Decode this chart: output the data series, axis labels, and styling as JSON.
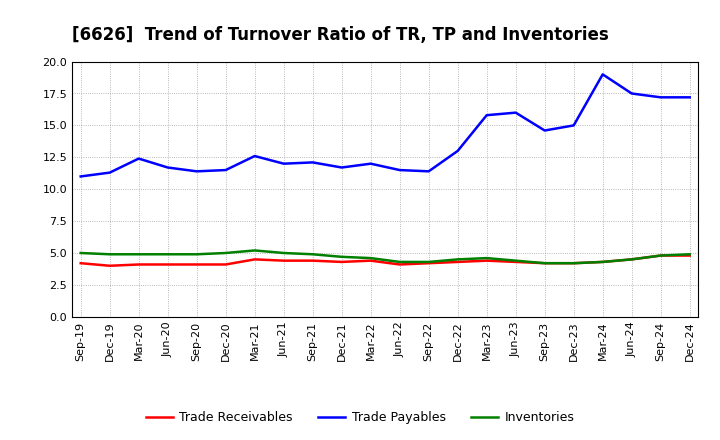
{
  "title": "[6626]  Trend of Turnover Ratio of TR, TP and Inventories",
  "x_labels": [
    "Sep-19",
    "Dec-19",
    "Mar-20",
    "Jun-20",
    "Sep-20",
    "Dec-20",
    "Mar-21",
    "Jun-21",
    "Sep-21",
    "Dec-21",
    "Mar-22",
    "Jun-22",
    "Sep-22",
    "Dec-22",
    "Mar-23",
    "Jun-23",
    "Sep-23",
    "Dec-23",
    "Mar-24",
    "Jun-24",
    "Sep-24",
    "Dec-24"
  ],
  "trade_receivables": [
    4.2,
    4.0,
    4.1,
    4.1,
    4.1,
    4.1,
    4.5,
    4.4,
    4.4,
    4.3,
    4.4,
    4.1,
    4.2,
    4.3,
    4.4,
    4.3,
    4.2,
    4.2,
    4.3,
    4.5,
    4.8,
    4.8
  ],
  "trade_payables": [
    11.0,
    11.3,
    12.4,
    11.7,
    11.4,
    11.5,
    12.6,
    12.0,
    12.1,
    11.7,
    12.0,
    11.5,
    11.4,
    13.0,
    15.8,
    16.0,
    14.6,
    15.0,
    19.0,
    17.5,
    17.2,
    17.2
  ],
  "inventories": [
    5.0,
    4.9,
    4.9,
    4.9,
    4.9,
    5.0,
    5.2,
    5.0,
    4.9,
    4.7,
    4.6,
    4.3,
    4.3,
    4.5,
    4.6,
    4.4,
    4.2,
    4.2,
    4.3,
    4.5,
    4.8,
    4.9
  ],
  "tr_color": "#ff0000",
  "tp_color": "#0000ff",
  "inv_color": "#008000",
  "ylim": [
    0.0,
    20.0
  ],
  "yticks": [
    0.0,
    2.5,
    5.0,
    7.5,
    10.0,
    12.5,
    15.0,
    17.5,
    20.0
  ],
  "background_color": "#ffffff",
  "plot_bg_color": "#ffffff",
  "grid_color": "#999999",
  "legend_tr": "Trade Receivables",
  "legend_tp": "Trade Payables",
  "legend_inv": "Inventories",
  "title_fontsize": 12,
  "tick_fontsize": 8,
  "legend_fontsize": 9,
  "linewidth": 1.8
}
